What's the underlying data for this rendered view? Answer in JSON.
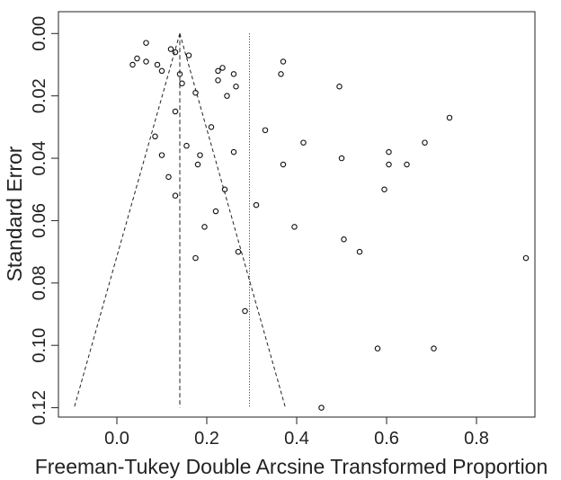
{
  "chart_data": {
    "type": "scatter",
    "title": "",
    "xlabel": "Freeman-Tukey Double Arcsine Transformed Proportion",
    "ylabel": "Standard Error",
    "xlim": [
      -0.13,
      0.93
    ],
    "ylim": [
      0.123,
      -0.007
    ],
    "y_axis_inverted": true,
    "x_ticks": [
      0.0,
      0.2,
      0.4,
      0.6,
      0.8
    ],
    "x_tick_labels": [
      "0.0",
      "0.2",
      "0.4",
      "0.6",
      "0.8"
    ],
    "y_ticks": [
      0.0,
      0.02,
      0.04,
      0.06,
      0.08,
      0.1,
      0.12
    ],
    "y_tick_labels": [
      "0.00",
      "0.02",
      "0.04",
      "0.06",
      "0.08",
      "0.10",
      "0.12"
    ],
    "grid": false,
    "legend": "none",
    "pooled_estimate": 0.14,
    "reference_line_x": 0.295,
    "funnel": {
      "apex": [
        0.14,
        0.0
      ],
      "base_se": 0.12,
      "base_left": -0.095,
      "base_right": 0.375
    },
    "points": [
      [
        0.065,
        0.003
      ],
      [
        0.045,
        0.008
      ],
      [
        0.035,
        0.01
      ],
      [
        0.065,
        0.009
      ],
      [
        0.12,
        0.005
      ],
      [
        0.13,
        0.006
      ],
      [
        0.16,
        0.007
      ],
      [
        0.09,
        0.01
      ],
      [
        0.1,
        0.012
      ],
      [
        0.14,
        0.013
      ],
      [
        0.145,
        0.016
      ],
      [
        0.175,
        0.019
      ],
      [
        0.225,
        0.012
      ],
      [
        0.235,
        0.011
      ],
      [
        0.225,
        0.015
      ],
      [
        0.26,
        0.013
      ],
      [
        0.265,
        0.017
      ],
      [
        0.245,
        0.02
      ],
      [
        0.37,
        0.009
      ],
      [
        0.365,
        0.013
      ],
      [
        0.495,
        0.017
      ],
      [
        0.74,
        0.027
      ],
      [
        0.13,
        0.025
      ],
      [
        0.21,
        0.03
      ],
      [
        0.085,
        0.033
      ],
      [
        0.33,
        0.031
      ],
      [
        0.415,
        0.035
      ],
      [
        0.155,
        0.036
      ],
      [
        0.26,
        0.038
      ],
      [
        0.1,
        0.039
      ],
      [
        0.185,
        0.039
      ],
      [
        0.18,
        0.042
      ],
      [
        0.37,
        0.042
      ],
      [
        0.5,
        0.04
      ],
      [
        0.605,
        0.038
      ],
      [
        0.605,
        0.042
      ],
      [
        0.645,
        0.042
      ],
      [
        0.685,
        0.035
      ],
      [
        0.115,
        0.046
      ],
      [
        0.24,
        0.05
      ],
      [
        0.595,
        0.05
      ],
      [
        0.13,
        0.052
      ],
      [
        0.31,
        0.055
      ],
      [
        0.22,
        0.057
      ],
      [
        0.195,
        0.062
      ],
      [
        0.395,
        0.062
      ],
      [
        0.505,
        0.066
      ],
      [
        0.27,
        0.07
      ],
      [
        0.54,
        0.07
      ],
      [
        0.175,
        0.072
      ],
      [
        0.91,
        0.072
      ],
      [
        0.285,
        0.089
      ],
      [
        0.58,
        0.101
      ],
      [
        0.705,
        0.101
      ],
      [
        0.455,
        0.12
      ]
    ]
  }
}
